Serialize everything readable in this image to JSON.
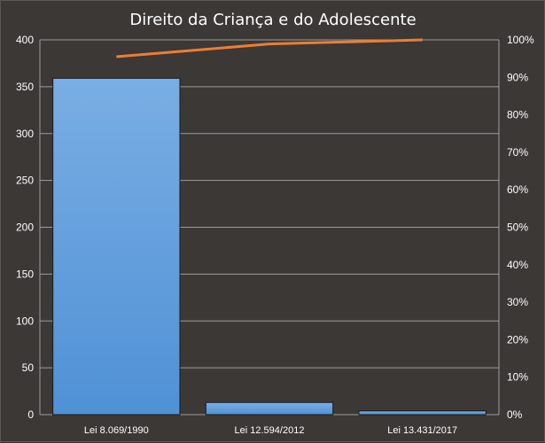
{
  "chart_data": {
    "type": "bar",
    "title": "Direito da Criança e do Adolescente",
    "xlabel": "",
    "ylabel": "",
    "categories": [
      "Lei 8.069/1990",
      "Lei 12.594/2012",
      "Lei 13.431/2017"
    ],
    "series": [
      {
        "type": "bar",
        "axis": "primary",
        "values": [
          359,
          13,
          4
        ]
      },
      {
        "type": "line",
        "axis": "secondary",
        "values": [
          95.5,
          98.9,
          100
        ]
      }
    ],
    "ylim": [
      0,
      400
    ],
    "yticks": [
      "0",
      "50",
      "100",
      "150",
      "200",
      "250",
      "300",
      "350",
      "400"
    ],
    "y2lim": [
      0,
      100
    ],
    "y2ticks": [
      "0%",
      "10%",
      "20%",
      "30%",
      "40%",
      "50%",
      "60%",
      "70%",
      "80%",
      "90%",
      "100%"
    ],
    "grid": true,
    "legend": "none",
    "colors": {
      "background": "#3b3836",
      "bar": "#4f91d6",
      "bar_top": "#7aaee4",
      "line": "#ed7d31",
      "grid": "#9e9e9e",
      "text": "#ffffff"
    }
  }
}
